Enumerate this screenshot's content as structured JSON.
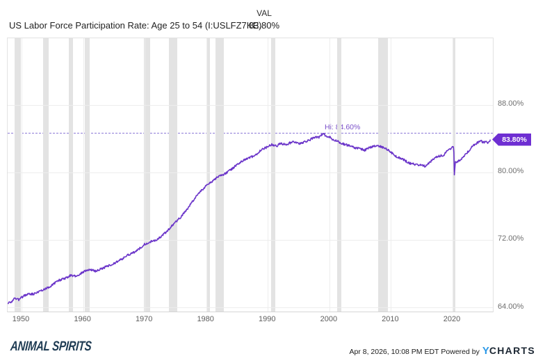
{
  "header": {
    "title": "US Labor Force Participation Rate: Age 25 to 54 (I:USLFZ7KE)",
    "val_label": "VAL",
    "val_value": "83.80%"
  },
  "chart_data": {
    "type": "line",
    "title": "US Labor Force Participation Rate: Age 25 to 54",
    "series_id": "I:USLFZ7KE",
    "unit": "%",
    "x_range": [
      1947.74,
      2026.55
    ],
    "x_ticks": [
      1950,
      1960,
      1970,
      1980,
      1990,
      2000,
      2010,
      2020
    ],
    "y_gridline_values": [
      88,
      80,
      72,
      64
    ],
    "y_tick_labels": [
      "88.00%",
      "80.00%",
      "72.00%",
      "64.00%"
    ],
    "hi_annotation": {
      "label": "Hi: 84.60%",
      "value": 84.6
    },
    "last_value": 83.8,
    "last_value_label": "83.80%",
    "line_color": "#6a34c9",
    "hi_line_color": "#8c79d6",
    "badge_color": "#6e2ed2",
    "recession_band_color": "#e3e3e3",
    "noise_pct": 0.13,
    "recessions": [
      [
        1948.87,
        1949.83
      ],
      [
        1953.54,
        1954.4
      ],
      [
        1957.63,
        1958.33
      ],
      [
        1960.3,
        1961.1
      ],
      [
        1969.92,
        1970.9
      ],
      [
        1973.9,
        1975.25
      ],
      [
        1980.0,
        1980.6
      ],
      [
        1981.54,
        1982.9
      ],
      [
        1990.54,
        1991.2
      ],
      [
        2001.2,
        2001.9
      ],
      [
        2007.95,
        2009.5
      ],
      [
        2020.05,
        2020.45
      ]
    ],
    "points": [
      [
        1947.8,
        64.5
      ],
      [
        1948.5,
        64.8
      ],
      [
        1949.0,
        65.1
      ],
      [
        1949.5,
        64.9
      ],
      [
        1950.0,
        65.2
      ],
      [
        1950.5,
        65.4
      ],
      [
        1951,
        65.6
      ],
      [
        1952,
        65.6
      ],
      [
        1953,
        65.9
      ],
      [
        1953.8,
        66.2
      ],
      [
        1954.5,
        66.4
      ],
      [
        1955,
        66.7
      ],
      [
        1956,
        67.2
      ],
      [
        1957,
        67.4
      ],
      [
        1958,
        67.8
      ],
      [
        1959,
        67.7
      ],
      [
        1960,
        68.2
      ],
      [
        1961,
        68.5
      ],
      [
        1962,
        68.3
      ],
      [
        1963,
        68.6
      ],
      [
        1964,
        68.9
      ],
      [
        1965,
        69.2
      ],
      [
        1966,
        69.6
      ],
      [
        1967,
        70.1
      ],
      [
        1968,
        70.4
      ],
      [
        1969,
        70.9
      ],
      [
        1970,
        71.5
      ],
      [
        1971,
        71.8
      ],
      [
        1972,
        72.0
      ],
      [
        1973,
        72.6
      ],
      [
        1974,
        73.3
      ],
      [
        1975,
        74.1
      ],
      [
        1976,
        74.8
      ],
      [
        1977,
        75.7
      ],
      [
        1978,
        76.8
      ],
      [
        1979,
        77.7
      ],
      [
        1980,
        78.4
      ],
      [
        1981,
        78.9
      ],
      [
        1982,
        79.5
      ],
      [
        1983,
        79.8
      ],
      [
        1984,
        80.3
      ],
      [
        1985,
        80.9
      ],
      [
        1986,
        81.4
      ],
      [
        1987,
        81.7
      ],
      [
        1988,
        82.0
      ],
      [
        1989,
        82.7
      ],
      [
        1990,
        83.0
      ],
      [
        1990.7,
        83.3
      ],
      [
        1991.5,
        83.1
      ],
      [
        1992,
        83.4
      ],
      [
        1993,
        83.3
      ],
      [
        1994,
        83.6
      ],
      [
        1995,
        83.4
      ],
      [
        1996,
        83.6
      ],
      [
        1997,
        83.9
      ],
      [
        1997.7,
        84.2
      ],
      [
        1998.3,
        84.1
      ],
      [
        1999.0,
        84.6
      ],
      [
        1999.5,
        84.2
      ],
      [
        2000,
        84.2
      ],
      [
        2000.5,
        83.9
      ],
      [
        2001,
        83.8
      ],
      [
        2002,
        83.4
      ],
      [
        2003,
        83.2
      ],
      [
        2004,
        82.9
      ],
      [
        2005,
        82.8
      ],
      [
        2005.7,
        82.6
      ],
      [
        2006.5,
        82.9
      ],
      [
        2007,
        83.0
      ],
      [
        2007.8,
        83.2
      ],
      [
        2008.5,
        83.0
      ],
      [
        2009,
        82.9
      ],
      [
        2009.7,
        82.5
      ],
      [
        2010.5,
        82.1
      ],
      [
        2011,
        81.8
      ],
      [
        2012,
        81.5
      ],
      [
        2013,
        81.1
      ],
      [
        2014,
        80.9
      ],
      [
        2015,
        80.8
      ],
      [
        2015.6,
        80.7
      ],
      [
        2016.3,
        81.2
      ],
      [
        2017,
        81.6
      ],
      [
        2017.8,
        81.9
      ],
      [
        2018.5,
        82.0
      ],
      [
        2019,
        82.4
      ],
      [
        2019.6,
        82.7
      ],
      [
        2020.1,
        83.0
      ],
      [
        2020.2,
        82.9
      ],
      [
        2020.3,
        79.7
      ],
      [
        2020.45,
        81.2
      ],
      [
        2020.8,
        81.3
      ],
      [
        2021.2,
        81.4
      ],
      [
        2021.8,
        81.8
      ],
      [
        2022.3,
        82.3
      ],
      [
        2022.8,
        82.6
      ],
      [
        2023.3,
        83.2
      ],
      [
        2023.8,
        83.3
      ],
      [
        2024.2,
        83.6
      ],
      [
        2024.6,
        83.8
      ],
      [
        2025.0,
        83.5
      ],
      [
        2025.4,
        83.7
      ],
      [
        2025.7,
        83.5
      ],
      [
        2026.0,
        83.7
      ],
      [
        2026.17,
        83.8
      ]
    ]
  },
  "footer": {
    "logo_text": "ANIMAL SPIRITS",
    "timestamp": "Apr 8, 2026, 10:08 PM EDT",
    "powered_by": "Powered by",
    "ycharts_y": "Y",
    "ycharts_rest": "CHARTS"
  }
}
